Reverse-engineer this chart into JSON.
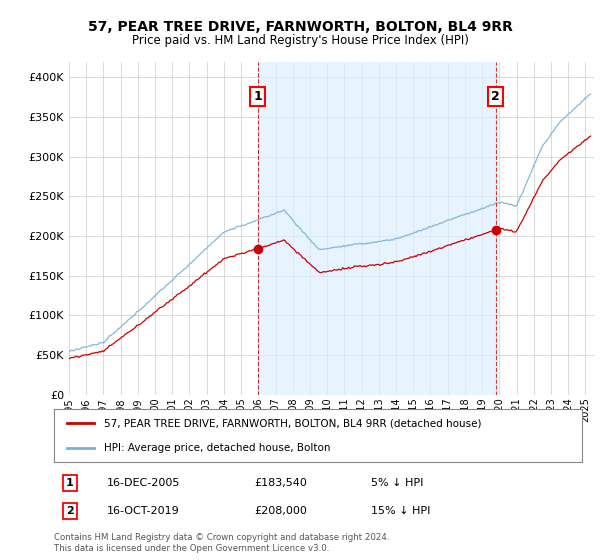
{
  "title": "57, PEAR TREE DRIVE, FARNWORTH, BOLTON, BL4 9RR",
  "subtitle": "Price paid vs. HM Land Registry's House Price Index (HPI)",
  "legend_line1": "57, PEAR TREE DRIVE, FARNWORTH, BOLTON, BL4 9RR (detached house)",
  "legend_line2": "HPI: Average price, detached house, Bolton",
  "annotation1_date": "16-DEC-2005",
  "annotation1_price": "£183,540",
  "annotation1_hpi": "5% ↓ HPI",
  "annotation2_date": "16-OCT-2019",
  "annotation2_price": "£208,000",
  "annotation2_hpi": "15% ↓ HPI",
  "footer": "Contains HM Land Registry data © Crown copyright and database right 2024.\nThis data is licensed under the Open Government Licence v3.0.",
  "sale1_year": 2005.96,
  "sale1_value": 183540,
  "sale2_year": 2019.79,
  "sale2_value": 208000,
  "hpi_color": "#7ab0d4",
  "price_color": "#cc0000",
  "vline_color": "#cc0000",
  "marker_color": "#cc0000",
  "shade_color": "#ddeeff",
  "ylim": [
    0,
    420000
  ],
  "yticks": [
    0,
    50000,
    100000,
    150000,
    200000,
    250000,
    300000,
    350000,
    400000
  ],
  "background_color": "#ffffff",
  "grid_color": "#cccccc"
}
